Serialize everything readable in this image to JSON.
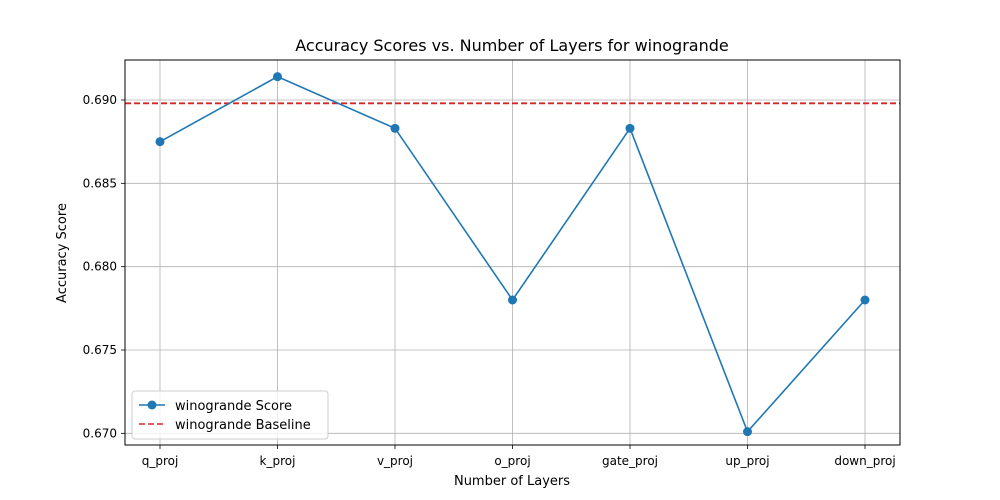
{
  "chart_data": {
    "type": "line",
    "title": "Accuracy Scores vs. Number of Layers for winogrande",
    "xlabel": "Number of Layers",
    "ylabel": "Accuracy Score",
    "categories": [
      "q_proj",
      "k_proj",
      "v_proj",
      "o_proj",
      "gate_proj",
      "up_proj",
      "down_proj"
    ],
    "series": [
      {
        "name": "winogrande Score",
        "values": [
          0.6875,
          0.6914,
          0.6883,
          0.678,
          0.6883,
          0.6701,
          0.678
        ],
        "color": "#1f77b4",
        "marker": "circle",
        "line_style": "solid"
      }
    ],
    "baseline": {
      "name": "winogrande Baseline",
      "value": 0.6898,
      "color": "#d62728",
      "line_style": "dashed"
    },
    "ylim": [
      0.6693,
      0.6924
    ],
    "yticks": [
      "0.670",
      "0.675",
      "0.680",
      "0.685",
      "0.690"
    ],
    "ytick_values": [
      0.67,
      0.675,
      0.68,
      0.685,
      0.69
    ],
    "grid": true,
    "legend_position": "lower-left"
  }
}
